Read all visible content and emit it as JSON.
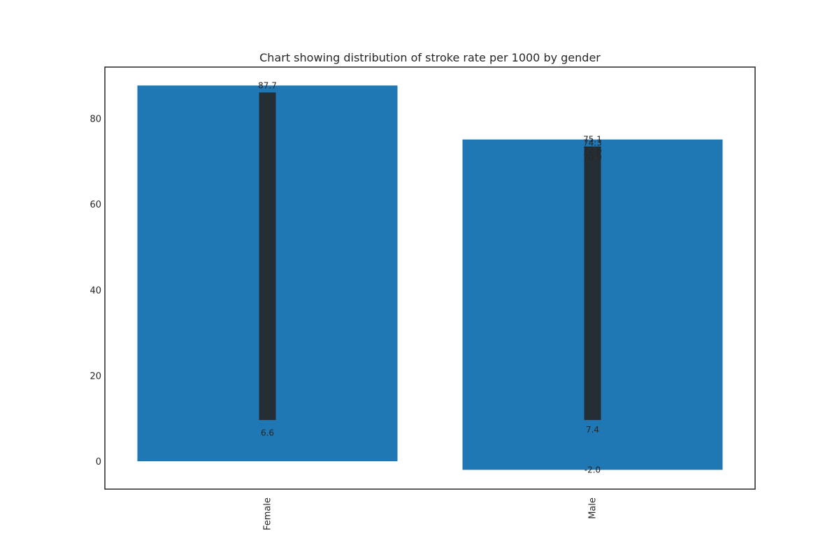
{
  "chart_data": {
    "type": "bar",
    "title": "Chart showing distribution of stroke rate per 1000 by gender",
    "xlabel": "",
    "ylabel": "",
    "categories": [
      "Female",
      "Male"
    ],
    "values": [
      87.7,
      75.1
    ],
    "bar_min_values": [
      0,
      -2.0
    ],
    "data_labels": [
      [
        "87.7",
        "6.6"
      ],
      [
        "75.1",
        "74.3",
        "72.6",
        "70.9",
        "-2.0",
        "7.4"
      ]
    ],
    "ylim": [
      -6.5,
      92
    ],
    "yticks": [
      0,
      20,
      40,
      60,
      80
    ],
    "grid": false,
    "legend": "none",
    "bar_color": "#1f77b4",
    "label_color": "#262626"
  }
}
